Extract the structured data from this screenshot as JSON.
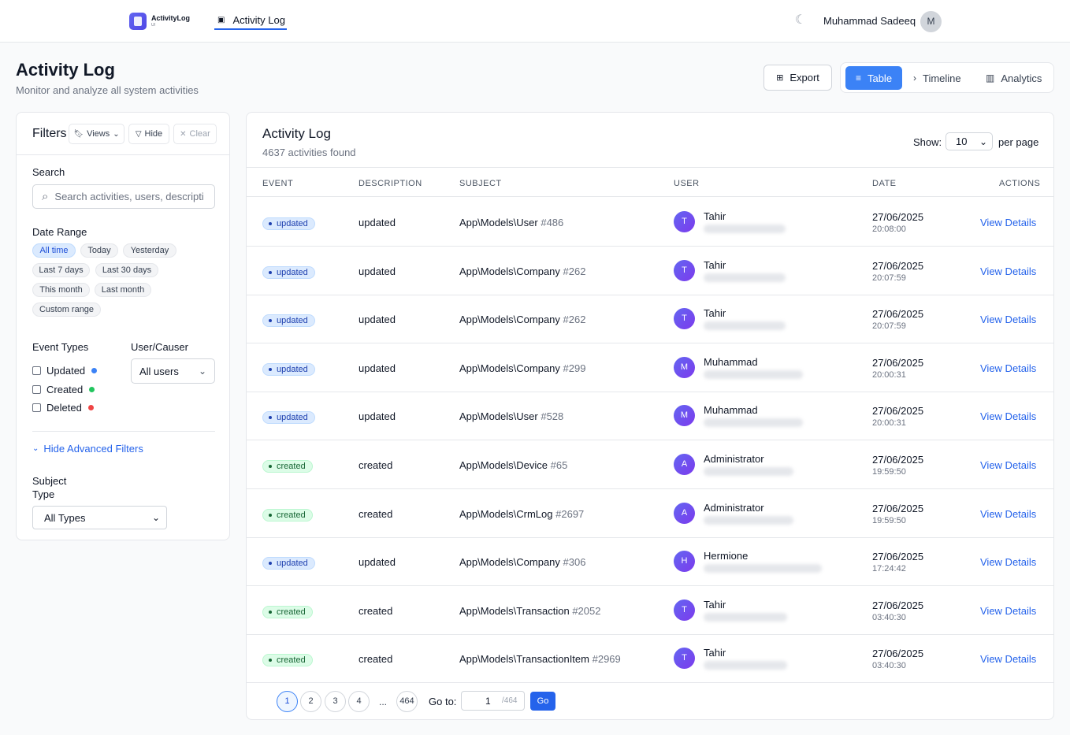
{
  "nav": {
    "logo_title": "ActivityLog",
    "logo_sub": "UI",
    "tab_label": "Activity Log",
    "user_name": "Muhammad Sadeeq",
    "user_initial": "M"
  },
  "header": {
    "title": "Activity Log",
    "subtitle": "Monitor and analyze all system activities",
    "export_label": "Export",
    "views": [
      "Table",
      "Timeline",
      "Analytics"
    ]
  },
  "filters": {
    "title": "Filters",
    "views_label": "Views",
    "hide_label": "Hide",
    "clear_label": "Clear",
    "search_label": "Search",
    "search_placeholder": "Search activities, users, descriptions...",
    "date_range_label": "Date Range",
    "date_ranges": [
      "All time",
      "Today",
      "Yesterday",
      "Last 7 days",
      "Last 30 days",
      "This month",
      "Last month",
      "Custom range"
    ],
    "event_types_label": "Event Types",
    "event_types": [
      {
        "label": "Updated",
        "color": "#3b82f6"
      },
      {
        "label": "Created",
        "color": "#22c55e"
      },
      {
        "label": "Deleted",
        "color": "#ef4444"
      }
    ],
    "user_causer_label": "User/Causer",
    "user_select_value": "All users",
    "advanced_link": "Hide Advanced Filters",
    "subject_type_label_1": "Subject",
    "subject_type_label_2": "Type",
    "subject_type_value": "All Types"
  },
  "table": {
    "title": "Activity Log",
    "count_text": "4637 activities found",
    "show_label": "Show:",
    "per_page_value": "10",
    "per_page_label": "per page",
    "columns": [
      "EVENT",
      "DESCRIPTION",
      "SUBJECT",
      "USER",
      "DATE",
      "ACTIONS"
    ],
    "action_label": "View Details",
    "rows": [
      {
        "event": "updated",
        "description": "updated",
        "subject": "App\\Models\\User",
        "subject_id": "#486",
        "user": "Tahir",
        "initial": "T",
        "date": "27/06/2025",
        "time": "20:08:00"
      },
      {
        "event": "updated",
        "description": "updated",
        "subject": "App\\Models\\Company",
        "subject_id": "#262",
        "user": "Tahir",
        "initial": "T",
        "date": "27/06/2025",
        "time": "20:07:59"
      },
      {
        "event": "updated",
        "description": "updated",
        "subject": "App\\Models\\Company",
        "subject_id": "#262",
        "user": "Tahir",
        "initial": "T",
        "date": "27/06/2025",
        "time": "20:07:59"
      },
      {
        "event": "updated",
        "description": "updated",
        "subject": "App\\Models\\Company",
        "subject_id": "#299",
        "user": "Muhammad",
        "initial": "M",
        "date": "27/06/2025",
        "time": "20:00:31"
      },
      {
        "event": "updated",
        "description": "updated",
        "subject": "App\\Models\\User",
        "subject_id": "#528",
        "user": "Muhammad",
        "initial": "M",
        "date": "27/06/2025",
        "time": "20:00:31"
      },
      {
        "event": "created",
        "description": "created",
        "subject": "App\\Models\\Device",
        "subject_id": "#65",
        "user": "Administrator",
        "initial": "A",
        "date": "27/06/2025",
        "time": "19:59:50"
      },
      {
        "event": "created",
        "description": "created",
        "subject": "App\\Models\\CrmLog",
        "subject_id": "#2697",
        "user": "Administrator",
        "initial": "A",
        "date": "27/06/2025",
        "time": "19:59:50"
      },
      {
        "event": "updated",
        "description": "updated",
        "subject": "App\\Models\\Company",
        "subject_id": "#306",
        "user": "Hermione",
        "initial": "H",
        "date": "27/06/2025",
        "time": "17:24:42"
      },
      {
        "event": "created",
        "description": "created",
        "subject": "App\\Models\\Transaction",
        "subject_id": "#2052",
        "user": "Tahir",
        "initial": "T",
        "date": "27/06/2025",
        "time": "03:40:30"
      },
      {
        "event": "created",
        "description": "created",
        "subject": "App\\Models\\TransactionItem",
        "subject_id": "#2969",
        "user": "Tahir",
        "initial": "T",
        "date": "27/06/2025",
        "time": "03:40:30"
      }
    ]
  },
  "pagination": {
    "pages": [
      "1",
      "2",
      "3",
      "4"
    ],
    "ellipsis": "...",
    "last_page": "464",
    "goto_label": "Go to:",
    "goto_value": "1",
    "goto_total": "/464",
    "go_label": "Go"
  }
}
